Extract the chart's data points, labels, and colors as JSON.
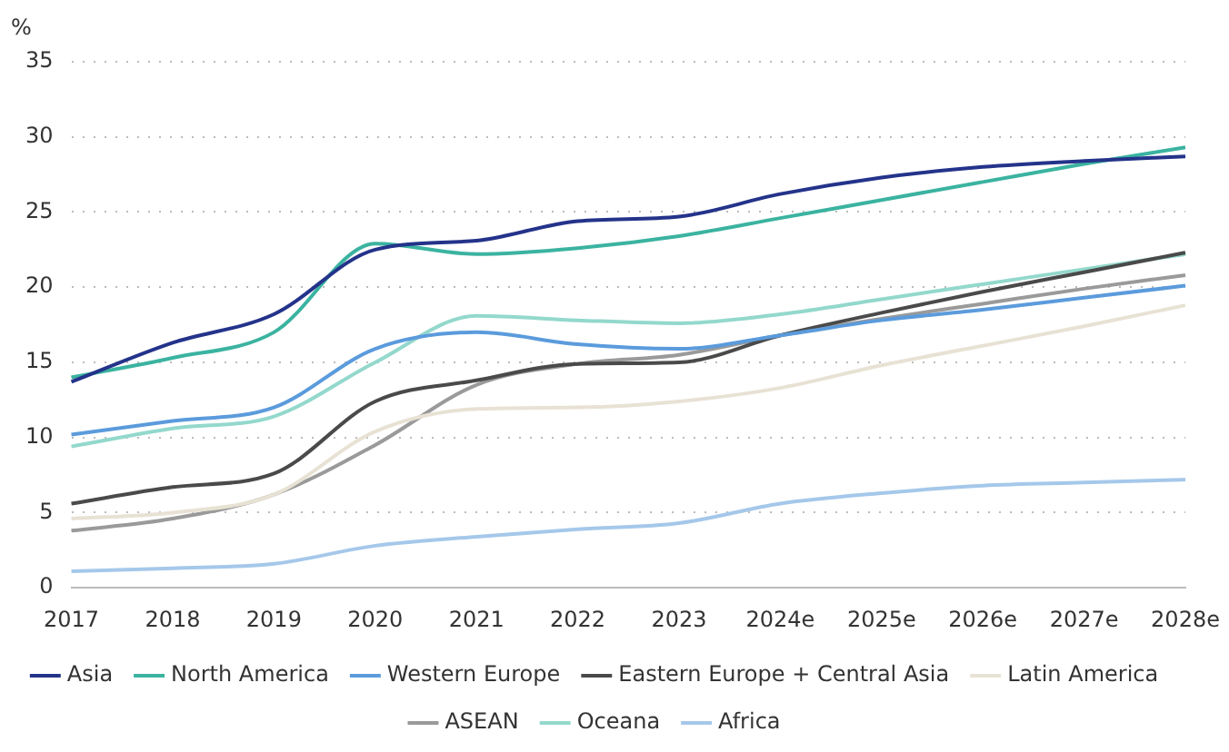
{
  "chart_data": {
    "type": "line",
    "ylabel": "%",
    "categories": [
      "2017",
      "2018",
      "2019",
      "2020",
      "2021",
      "2022",
      "2023",
      "2024e",
      "2025e",
      "2026e",
      "2027e",
      "2028e"
    ],
    "ylim": [
      0,
      35
    ],
    "yticks": [
      0,
      5,
      10,
      15,
      20,
      25,
      30,
      35
    ],
    "grid": "y",
    "legend": "bottom",
    "marker": "none",
    "line_style": "solid",
    "series": [
      {
        "name": "Asia",
        "color": "#24338a",
        "values": [
          13.7,
          16.3,
          18.2,
          22.5,
          23.1,
          24.4,
          24.7,
          26.2,
          27.3,
          28.0,
          28.4,
          28.7
        ]
      },
      {
        "name": "North America",
        "color": "#3bb3a0",
        "values": [
          14.0,
          15.3,
          17.0,
          22.9,
          22.2,
          22.6,
          23.4,
          24.6,
          25.8,
          27.0,
          28.2,
          29.3
        ]
      },
      {
        "name": "Western Europe",
        "color": "#5b9bdc",
        "values": [
          10.2,
          11.1,
          12.0,
          15.9,
          17.0,
          16.2,
          15.9,
          16.8,
          17.8,
          18.5,
          19.3,
          20.1
        ]
      },
      {
        "name": "Eastern Europe + Central Asia",
        "color": "#4a4a4a",
        "values": [
          5.6,
          6.7,
          7.6,
          12.4,
          13.8,
          14.9,
          15.0,
          16.8,
          18.3,
          19.7,
          21.0,
          22.3
        ]
      },
      {
        "name": "Latin America",
        "color": "#e8e2d4",
        "values": [
          4.6,
          5.0,
          6.2,
          10.4,
          11.9,
          12.0,
          12.4,
          13.3,
          14.8,
          16.1,
          17.4,
          18.8
        ]
      },
      {
        "name": "ASEAN",
        "color": "#9a9a9a",
        "values": [
          3.8,
          4.6,
          6.2,
          9.5,
          13.5,
          14.9,
          15.5,
          16.8,
          17.9,
          18.9,
          19.9,
          20.8
        ]
      },
      {
        "name": "Oceana",
        "color": "#93d8cc",
        "values": [
          9.4,
          10.6,
          11.4,
          15.0,
          18.1,
          17.8,
          17.6,
          18.2,
          19.2,
          20.2,
          21.2,
          22.2
        ]
      },
      {
        "name": "Africa",
        "color": "#a5c8ea",
        "values": [
          1.1,
          1.3,
          1.6,
          2.8,
          3.4,
          3.9,
          4.3,
          5.6,
          6.3,
          6.8,
          7.0,
          7.2
        ]
      }
    ]
  }
}
